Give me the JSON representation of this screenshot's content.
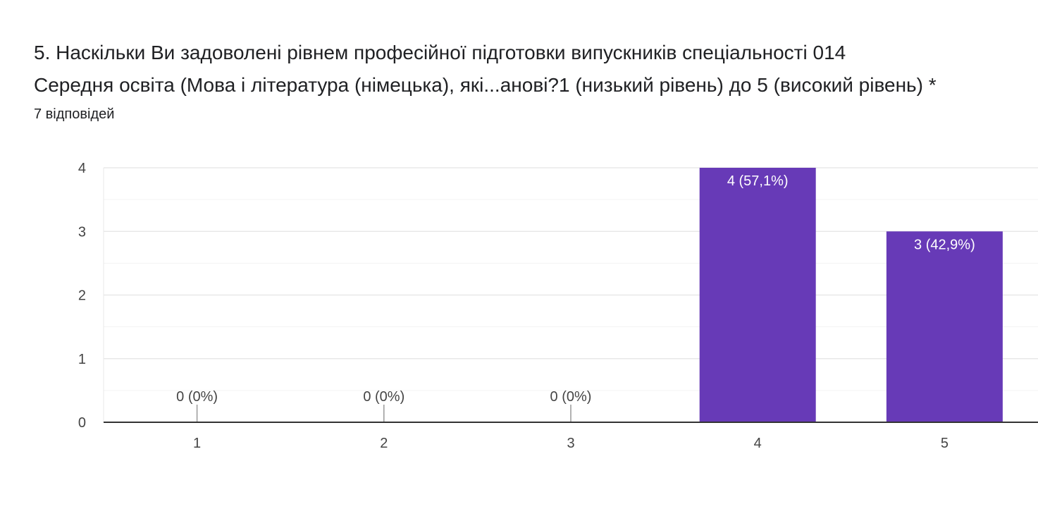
{
  "question": {
    "title_line1": "5. Наскільки Ви задоволені рівнем професійної підготовки випускників спеціальності 014",
    "title_line2": "Середня освіта (Мова і література (німецька), які...анові?1 (низький рівень) до 5 (високий рівень) *",
    "responses": "7 відповідей"
  },
  "colors": {
    "bar": "#673ab7",
    "grid": "#e8e8e8",
    "grid_minor": "#f3f3f3",
    "axis": "#333333",
    "tick_text": "#444444",
    "bar_label_inside": "#ffffff",
    "bar_label_outside": "#444444"
  },
  "chart_data": {
    "type": "bar",
    "categories": [
      "1",
      "2",
      "3",
      "4",
      "5"
    ],
    "values": [
      0,
      0,
      0,
      4,
      3
    ],
    "labels": [
      "0 (0%)",
      "0 (0%)",
      "0 (0%)",
      "4 (57,1%)",
      "3 (42,9%)"
    ],
    "yticks": [
      "0",
      "1",
      "2",
      "3",
      "4"
    ],
    "ylim": [
      0,
      4
    ],
    "grid": true,
    "title": "",
    "xlabel": "",
    "ylabel": ""
  }
}
